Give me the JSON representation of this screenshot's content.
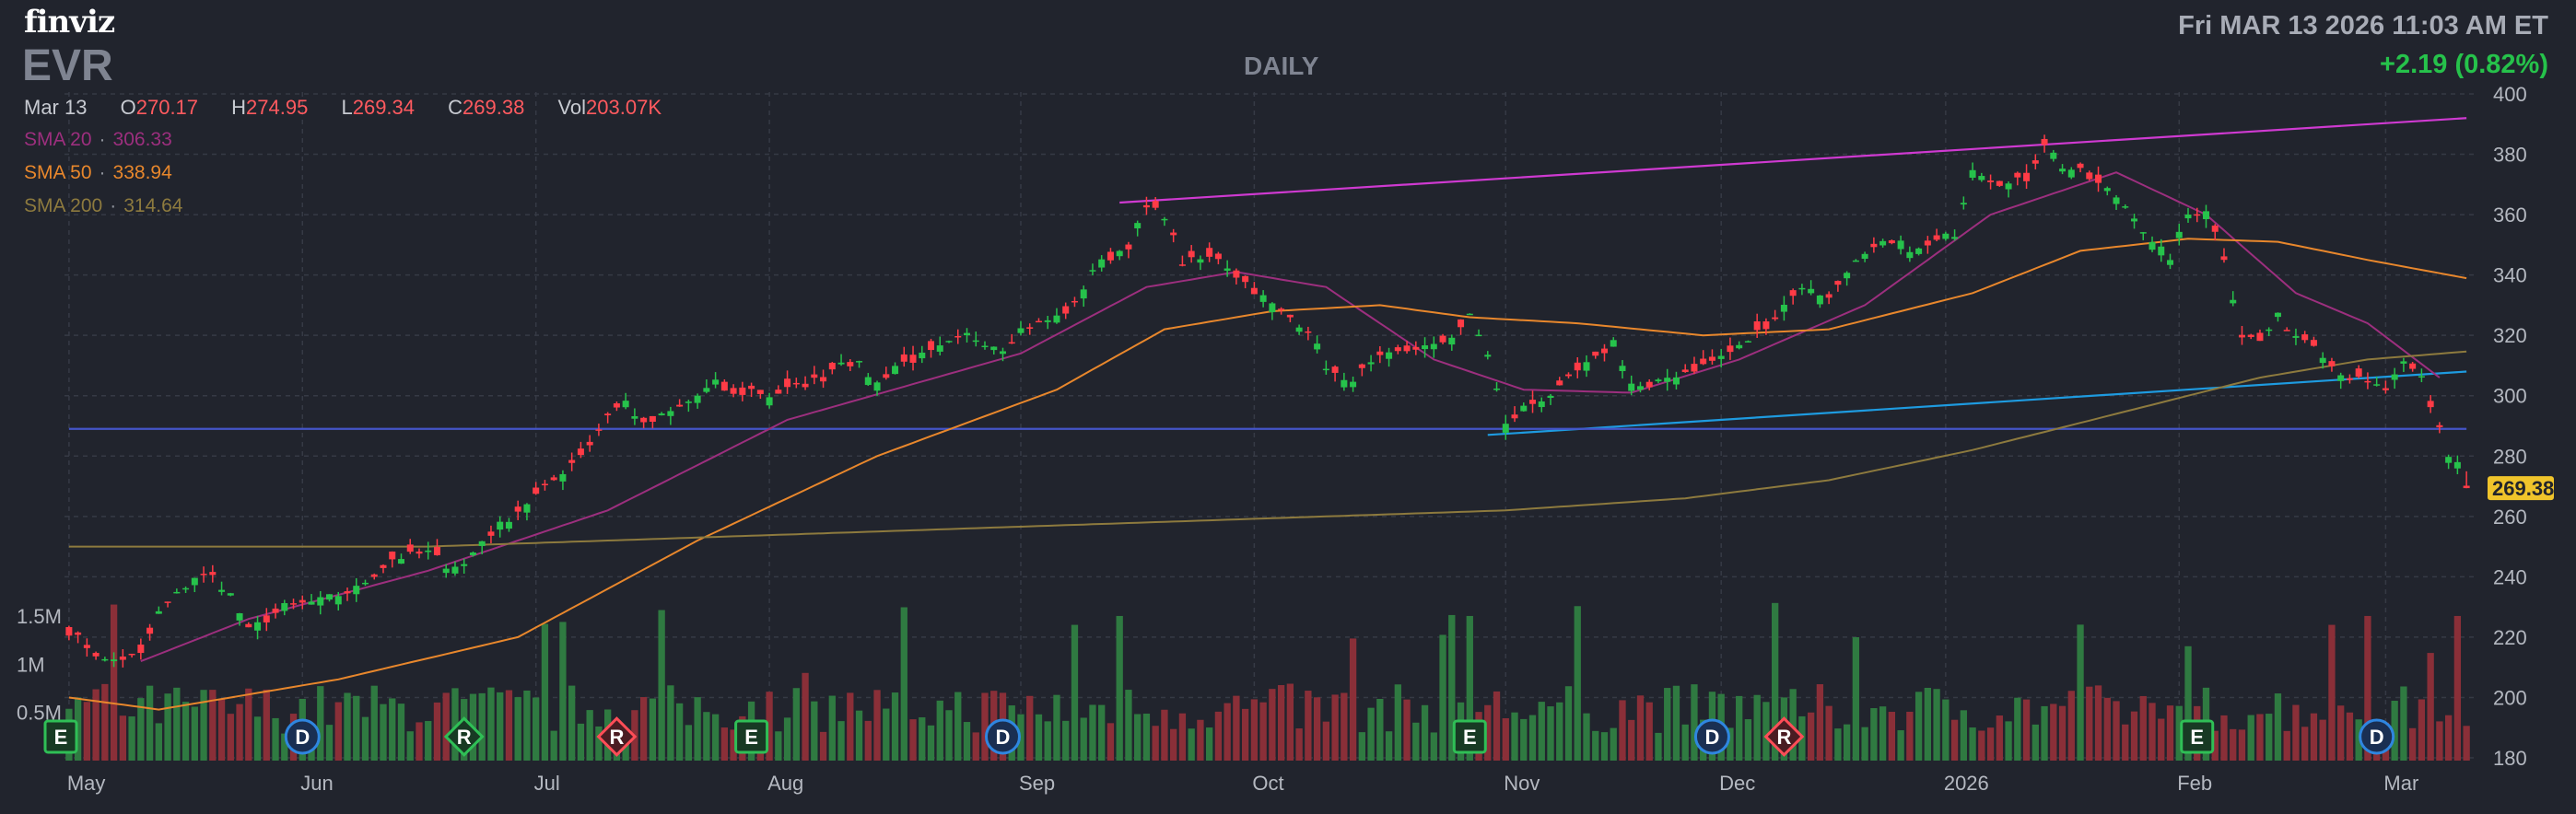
{
  "header": {
    "logo": "finviz",
    "ticker": "EVR",
    "interval": "DAILY",
    "datetime": "Fri MAR 13 2026 11:03 AM ET",
    "change": "+2.19 (0.82%)"
  },
  "ohlc": {
    "date": "Mar 13",
    "open_label": "O",
    "open": "270.17",
    "high_label": "H",
    "high": "274.95",
    "low_label": "L",
    "low": "269.34",
    "close_label": "C",
    "close": "269.38",
    "vol_label": "Vol",
    "vol": "203.07K"
  },
  "sma": [
    {
      "label": "SMA 20",
      "value": "306.33",
      "color": "#9c2f7e"
    },
    {
      "label": "SMA 50",
      "value": "338.94",
      "color": "#e8872c"
    },
    {
      "label": "SMA 200",
      "value": "314.64",
      "color": "#8d7a3e"
    }
  ],
  "last_price_tag": "269.38",
  "colors": {
    "background": "#21242d",
    "up": "#26c24b",
    "down": "#ff3b46",
    "grid": "#363a45",
    "vol_up": "#2f7a41",
    "vol_down": "#8a2f38",
    "resistance": "#cf3ad1",
    "support": "#1e9be0",
    "hline": "#4455c8"
  },
  "chart_data": {
    "type": "candlestick",
    "y_axis": {
      "ylim": [
        180,
        400
      ],
      "ticks": [
        "400",
        "380",
        "360",
        "340",
        "320",
        "300",
        "280",
        "260",
        "240",
        "220",
        "200",
        "180"
      ],
      "side": "right"
    },
    "volume_axis": {
      "ticks": [
        "1.5M",
        "1M",
        "0.5M"
      ],
      "values": [
        1500000,
        1000000,
        500000
      ],
      "side": "left"
    },
    "x_labels": [
      {
        "label": "May",
        "t": 0
      },
      {
        "label": "Jun",
        "t": 26
      },
      {
        "label": "Jul",
        "t": 52
      },
      {
        "label": "Aug",
        "t": 78
      },
      {
        "label": "Sep",
        "t": 106
      },
      {
        "label": "Oct",
        "t": 132
      },
      {
        "label": "Nov",
        "t": 160
      },
      {
        "label": "Dec",
        "t": 184
      },
      {
        "label": "2026",
        "t": 209
      },
      {
        "label": "Feb",
        "t": 235
      },
      {
        "label": "Mar",
        "t": 258
      }
    ],
    "n_bars": 268,
    "markers": [
      {
        "label": "D",
        "t": 26,
        "kind": "dividend"
      },
      {
        "label": "R",
        "t": 44,
        "kind": "rating"
      },
      {
        "label": "R",
        "t": 61,
        "kind": "rating"
      },
      {
        "label": "E",
        "t": 76,
        "kind": "earnings"
      },
      {
        "label": "D",
        "t": 104,
        "kind": "dividend"
      },
      {
        "label": "E",
        "t": 156,
        "kind": "earnings"
      },
      {
        "label": "D",
        "t": 183,
        "kind": "dividend"
      },
      {
        "label": "R",
        "t": 191,
        "kind": "rating"
      },
      {
        "label": "E",
        "t": 237,
        "kind": "earnings"
      },
      {
        "label": "D",
        "t": 257,
        "kind": "dividend"
      },
      {
        "label": "E",
        "t": 0,
        "kind": "earnings"
      }
    ],
    "anchors": [
      [
        0,
        222
      ],
      [
        4,
        212
      ],
      [
        8,
        214
      ],
      [
        10,
        228
      ],
      [
        14,
        240
      ],
      [
        16,
        240
      ],
      [
        18,
        234
      ],
      [
        20,
        222
      ],
      [
        24,
        230
      ],
      [
        28,
        232
      ],
      [
        32,
        236
      ],
      [
        36,
        246
      ],
      [
        40,
        248
      ],
      [
        42,
        244
      ],
      [
        44,
        244
      ],
      [
        46,
        252
      ],
      [
        50,
        262
      ],
      [
        54,
        272
      ],
      [
        58,
        284
      ],
      [
        60,
        294
      ],
      [
        62,
        298
      ],
      [
        64,
        290
      ],
      [
        68,
        296
      ],
      [
        70,
        300
      ],
      [
        72,
        304
      ],
      [
        74,
        300
      ],
      [
        76,
        302
      ],
      [
        78,
        300
      ],
      [
        80,
        302
      ],
      [
        84,
        306
      ],
      [
        86,
        312
      ],
      [
        88,
        310
      ],
      [
        90,
        304
      ],
      [
        92,
        310
      ],
      [
        96,
        314
      ],
      [
        100,
        320
      ],
      [
        102,
        318
      ],
      [
        104,
        316
      ],
      [
        106,
        322
      ],
      [
        110,
        326
      ],
      [
        112,
        330
      ],
      [
        114,
        342
      ],
      [
        118,
        350
      ],
      [
        120,
        362
      ],
      [
        122,
        360
      ],
      [
        124,
        344
      ],
      [
        128,
        346
      ],
      [
        130,
        340
      ],
      [
        134,
        330
      ],
      [
        138,
        322
      ],
      [
        140,
        310
      ],
      [
        142,
        304
      ],
      [
        146,
        312
      ],
      [
        150,
        316
      ],
      [
        152,
        316
      ],
      [
        154,
        320
      ],
      [
        156,
        326
      ],
      [
        158,
        314
      ],
      [
        160,
        290
      ],
      [
        162,
        296
      ],
      [
        166,
        302
      ],
      [
        168,
        308
      ],
      [
        170,
        312
      ],
      [
        172,
        318
      ],
      [
        174,
        304
      ],
      [
        176,
        302
      ],
      [
        178,
        306
      ],
      [
        182,
        310
      ],
      [
        186,
        316
      ],
      [
        190,
        326
      ],
      [
        192,
        334
      ],
      [
        194,
        336
      ],
      [
        196,
        332
      ],
      [
        198,
        342
      ],
      [
        202,
        350
      ],
      [
        204,
        350
      ],
      [
        206,
        348
      ],
      [
        210,
        354
      ],
      [
        212,
        376
      ],
      [
        214,
        372
      ],
      [
        216,
        370
      ],
      [
        218,
        372
      ],
      [
        220,
        384
      ],
      [
        222,
        376
      ],
      [
        224,
        374
      ],
      [
        226,
        370
      ],
      [
        228,
        366
      ],
      [
        230,
        360
      ],
      [
        232,
        350
      ],
      [
        234,
        346
      ],
      [
        236,
        360
      ],
      [
        238,
        362
      ],
      [
        240,
        346
      ],
      [
        242,
        320
      ],
      [
        244,
        318
      ],
      [
        246,
        326
      ],
      [
        248,
        320
      ],
      [
        250,
        318
      ],
      [
        252,
        310
      ],
      [
        254,
        306
      ],
      [
        256,
        304
      ],
      [
        258,
        302
      ],
      [
        260,
        310
      ],
      [
        262,
        306
      ],
      [
        263,
        296
      ],
      [
        264,
        290
      ],
      [
        265,
        280
      ],
      [
        266,
        278
      ],
      [
        267,
        269
      ]
    ],
    "sma_anchors": [
      {
        "name": "SMA 20",
        "pts": [
          [
            8,
            212
          ],
          [
            20,
            226
          ],
          [
            40,
            242
          ],
          [
            60,
            262
          ],
          [
            80,
            292
          ],
          [
            106,
            314
          ],
          [
            120,
            336
          ],
          [
            130,
            341
          ],
          [
            140,
            336
          ],
          [
            152,
            312
          ],
          [
            162,
            302
          ],
          [
            174,
            301
          ],
          [
            186,
            312
          ],
          [
            200,
            330
          ],
          [
            214,
            360
          ],
          [
            228,
            374
          ],
          [
            238,
            360
          ],
          [
            248,
            334
          ],
          [
            256,
            324
          ],
          [
            264,
            306
          ]
        ]
      },
      {
        "name": "SMA 50",
        "pts": [
          [
            0,
            200
          ],
          [
            10,
            196
          ],
          [
            30,
            206
          ],
          [
            50,
            220
          ],
          [
            70,
            252
          ],
          [
            90,
            280
          ],
          [
            110,
            302
          ],
          [
            122,
            322
          ],
          [
            134,
            328
          ],
          [
            146,
            330
          ],
          [
            156,
            326
          ],
          [
            168,
            324
          ],
          [
            182,
            320
          ],
          [
            196,
            322
          ],
          [
            212,
            334
          ],
          [
            224,
            348
          ],
          [
            236,
            352
          ],
          [
            246,
            351
          ],
          [
            256,
            345
          ],
          [
            267,
            338.94
          ]
        ]
      },
      {
        "name": "SMA 200",
        "pts": [
          [
            0,
            250
          ],
          [
            40,
            250
          ],
          [
            80,
            254
          ],
          [
            120,
            258
          ],
          [
            160,
            262
          ],
          [
            180,
            266
          ],
          [
            196,
            272
          ],
          [
            212,
            282
          ],
          [
            228,
            294
          ],
          [
            244,
            306
          ],
          [
            256,
            312
          ],
          [
            267,
            314.64
          ]
        ]
      }
    ],
    "trendlines": [
      {
        "name": "resistance",
        "from": [
          117,
          364
        ],
        "to": [
          267,
          392
        ]
      },
      {
        "name": "support",
        "from": [
          158,
          287
        ],
        "to": [
          267,
          308
        ]
      },
      {
        "name": "horizontal",
        "from": [
          0,
          289
        ],
        "to": [
          267,
          289
        ]
      }
    ]
  }
}
